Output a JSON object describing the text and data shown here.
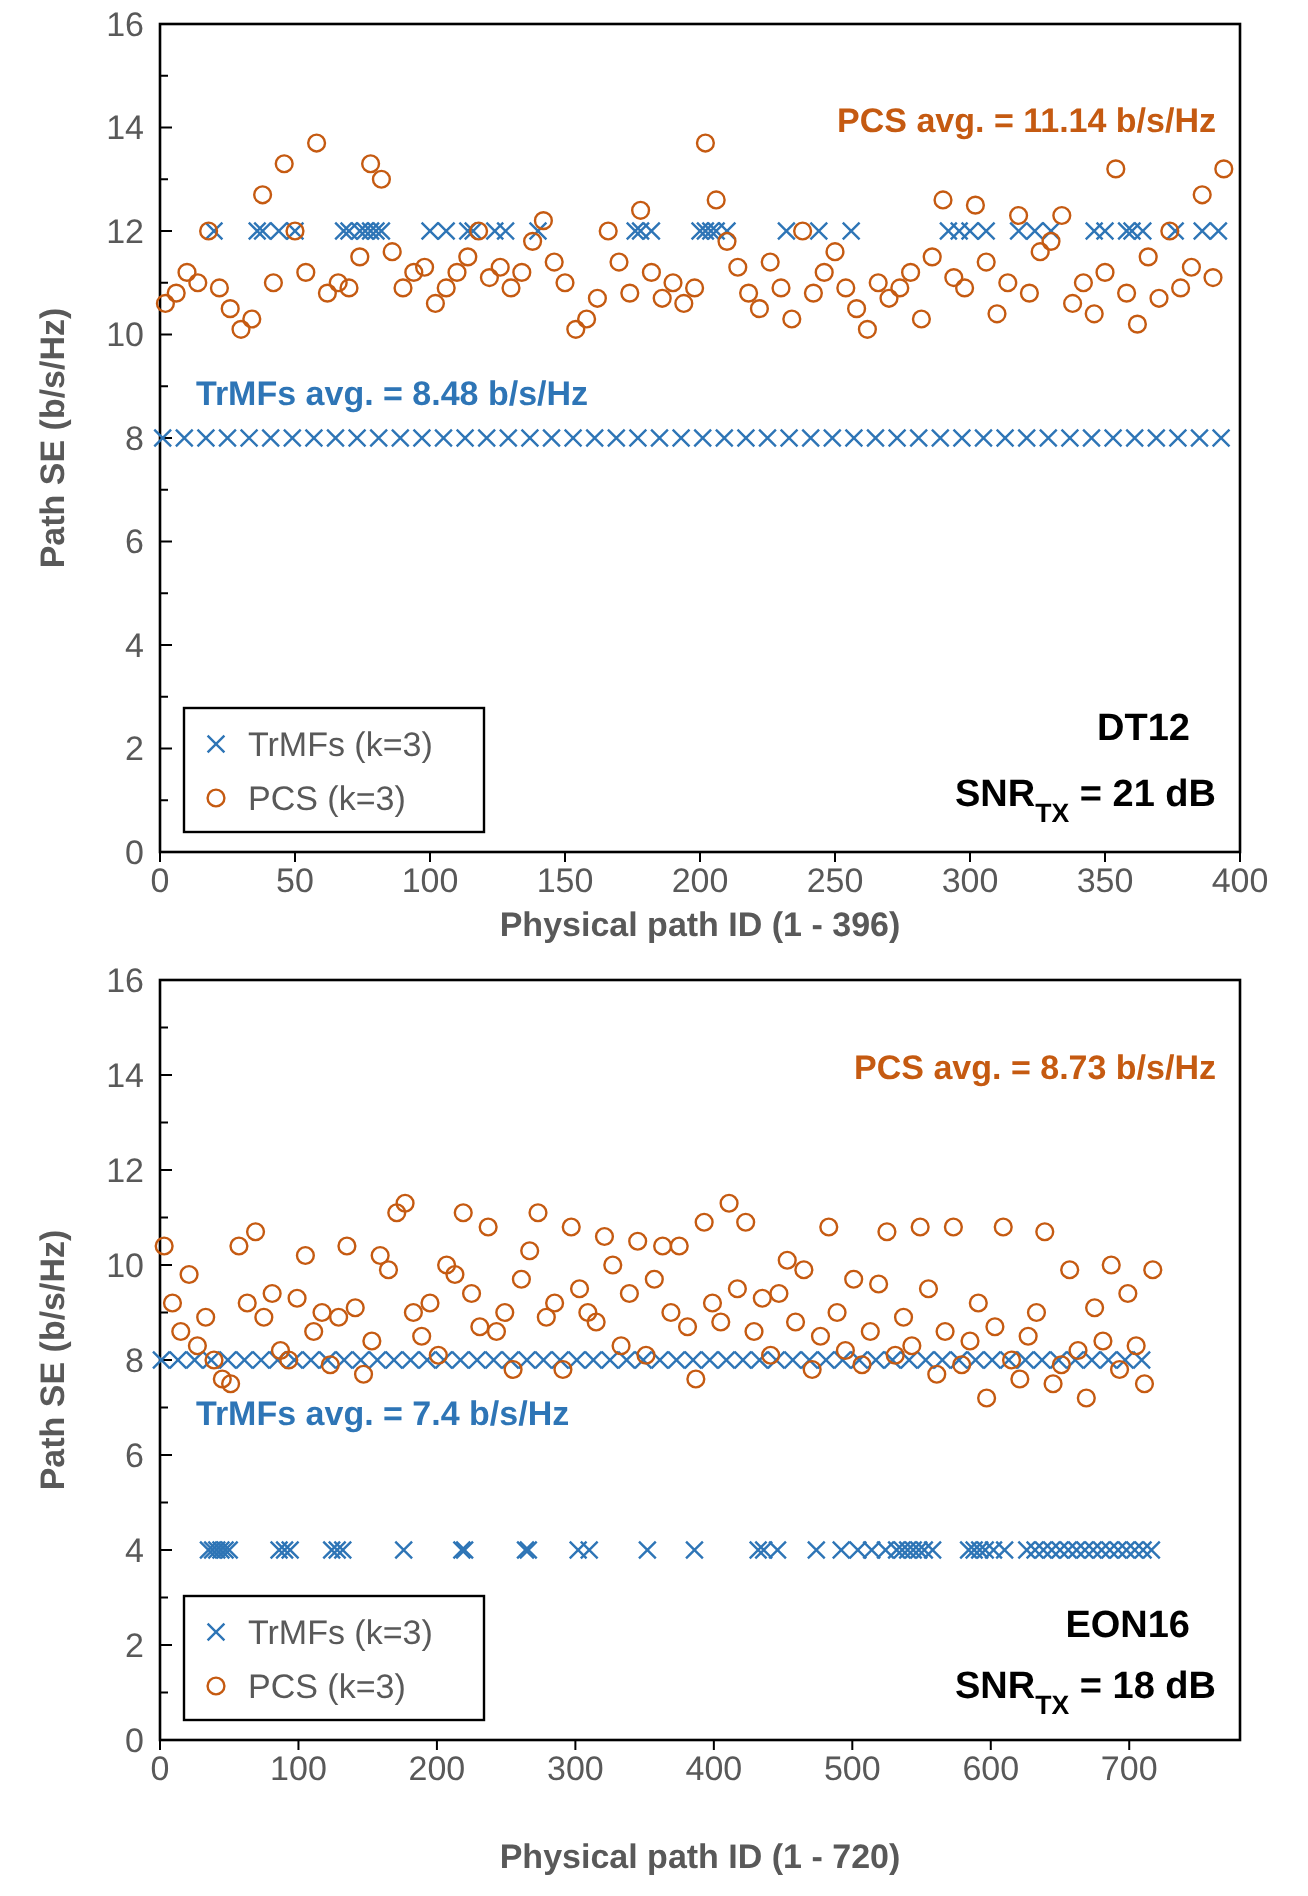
{
  "chart_data": [
    {
      "type": "scatter",
      "xlabel": "Physical path ID (1 - 396)",
      "ylabel": "Path SE (b/s/Hz)",
      "xlim": [
        0,
        400
      ],
      "xticks": [
        0,
        50,
        100,
        150,
        200,
        250,
        300,
        350,
        400
      ],
      "ylim": [
        0,
        16
      ],
      "yticks": [
        0,
        2,
        4,
        6,
        8,
        10,
        12,
        14,
        16
      ],
      "legend": "bottom left",
      "grid": false,
      "annotations": [
        "PCS avg. = 11.14 b/s/Hz",
        "TrMFs avg. = 8.48 b/s/Hz",
        "DT12",
        "SNR$_{TX}$ = 21 dB"
      ],
      "series": [
        {
          "name": "TrMFs (k=3)",
          "color": "#2e75b6",
          "marker": "cross",
          "x": [
            1,
            9,
            17,
            25,
            33,
            41,
            49,
            57,
            65,
            73,
            81,
            89,
            97,
            105,
            113,
            121,
            129,
            137,
            145,
            153,
            161,
            169,
            177,
            185,
            193,
            201,
            209,
            217,
            225,
            233,
            241,
            249,
            257,
            265,
            273,
            281,
            289,
            297,
            305,
            313,
            321,
            329,
            337,
            345,
            353,
            361,
            369,
            377,
            385,
            393,
            20,
            36,
            38,
            44,
            50,
            68,
            70,
            74,
            76,
            78,
            80,
            82,
            100,
            106,
            114,
            116,
            124,
            128,
            140,
            176,
            178,
            182,
            200,
            202,
            204,
            206,
            210,
            232,
            244,
            256,
            292,
            296,
            300,
            306,
            318,
            324,
            330,
            346,
            350,
            358,
            360,
            364,
            376,
            386,
            392
          ],
          "values": [
            8,
            8,
            8,
            8,
            8,
            8,
            8,
            8,
            8,
            8,
            8,
            8,
            8,
            8,
            8,
            8,
            8,
            8,
            8,
            8,
            8,
            8,
            8,
            8,
            8,
            8,
            8,
            8,
            8,
            8,
            8,
            8,
            8,
            8,
            8,
            8,
            8,
            8,
            8,
            8,
            8,
            8,
            8,
            8,
            8,
            8,
            8,
            8,
            8,
            8,
            12,
            12,
            12,
            12,
            12,
            12,
            12,
            12,
            12,
            12,
            12,
            12,
            12,
            12,
            12,
            12,
            12,
            12,
            12,
            12,
            12,
            12,
            12,
            12,
            12,
            12,
            12,
            12,
            12,
            12,
            12,
            12,
            12,
            12,
            12,
            12,
            12,
            12,
            12,
            12,
            12,
            12,
            12,
            12,
            12
          ]
        },
        {
          "name": "PCS (k=3)",
          "color": "#c55a11",
          "marker": "circle",
          "x": [
            2,
            6,
            10,
            14,
            18,
            22,
            26,
            30,
            34,
            38,
            42,
            46,
            50,
            54,
            58,
            62,
            66,
            70,
            74,
            78,
            82,
            86,
            90,
            94,
            98,
            102,
            106,
            110,
            114,
            118,
            122,
            126,
            130,
            134,
            138,
            142,
            146,
            150,
            154,
            158,
            162,
            166,
            170,
            174,
            178,
            182,
            186,
            190,
            194,
            198,
            202,
            206,
            210,
            214,
            218,
            222,
            226,
            230,
            234,
            238,
            242,
            246,
            250,
            254,
            258,
            262,
            266,
            270,
            274,
            278,
            282,
            286,
            290,
            294,
            298,
            302,
            306,
            310,
            314,
            318,
            322,
            326,
            330,
            334,
            338,
            342,
            346,
            350,
            354,
            358,
            362,
            366,
            370,
            374,
            378,
            382,
            386,
            390,
            394
          ],
          "values": [
            10.6,
            10.8,
            11.2,
            11.0,
            12.0,
            10.9,
            10.5,
            10.1,
            10.3,
            12.7,
            11.0,
            13.3,
            12.0,
            11.2,
            13.7,
            10.8,
            11.0,
            10.9,
            11.5,
            13.3,
            13.0,
            11.6,
            10.9,
            11.2,
            11.3,
            10.6,
            10.9,
            11.2,
            11.5,
            12.0,
            11.1,
            11.3,
            10.9,
            11.2,
            11.8,
            12.2,
            11.4,
            11.0,
            10.1,
            10.3,
            10.7,
            12.0,
            11.4,
            10.8,
            12.4,
            11.2,
            10.7,
            11.0,
            10.6,
            10.9,
            13.7,
            12.6,
            11.8,
            11.3,
            10.8,
            10.5,
            11.4,
            10.9,
            10.3,
            12.0,
            10.8,
            11.2,
            11.6,
            10.9,
            10.5,
            10.1,
            11.0,
            10.7,
            10.9,
            11.2,
            10.3,
            11.5,
            12.6,
            11.1,
            10.9,
            12.5,
            11.4,
            10.4,
            11.0,
            12.3,
            10.8,
            11.6,
            11.8,
            12.3,
            10.6,
            11.0,
            10.4,
            11.2,
            13.2,
            10.8,
            10.2,
            11.5,
            10.7,
            12.0,
            10.9,
            11.3,
            12.7,
            11.1,
            13.2
          ]
        }
      ]
    },
    {
      "type": "scatter",
      "xlabel": "Physical path ID (1 - 720)",
      "ylabel": "Path SE (b/s/Hz)",
      "xlim": [
        0,
        780
      ],
      "xticks": [
        0,
        100,
        200,
        300,
        400,
        500,
        600,
        700
      ],
      "ylim": [
        0,
        16
      ],
      "yticks": [
        0,
        2,
        4,
        6,
        8,
        10,
        12,
        14,
        16
      ],
      "legend": "bottom left",
      "grid": false,
      "annotations": [
        "PCS avg. = 8.73 b/s/Hz",
        "TrMFs avg. = 7.4 b/s/Hz",
        "EON16",
        "SNR$_{TX}$ = 18 dB"
      ],
      "series": [
        {
          "name": "TrMFs (k=3)",
          "color": "#2e75b6",
          "marker": "cross",
          "x": [
            1,
            13,
            25,
            37,
            49,
            61,
            73,
            85,
            97,
            109,
            121,
            133,
            145,
            157,
            169,
            181,
            193,
            205,
            217,
            229,
            241,
            253,
            265,
            277,
            289,
            301,
            313,
            325,
            337,
            349,
            361,
            373,
            385,
            397,
            409,
            421,
            433,
            445,
            457,
            469,
            481,
            493,
            505,
            517,
            529,
            541,
            553,
            565,
            577,
            589,
            601,
            613,
            625,
            637,
            649,
            661,
            673,
            685,
            697,
            709,
            35,
            38,
            41,
            44,
            47,
            50,
            86,
            90,
            94,
            124,
            128,
            132,
            176,
            218,
            220,
            264,
            266,
            302,
            310,
            352,
            386,
            432,
            436,
            446,
            474,
            492,
            504,
            514,
            524,
            532,
            536,
            540,
            544,
            548,
            552,
            558,
            584,
            588,
            592,
            596,
            602,
            610,
            626,
            632,
            638,
            644,
            650,
            656,
            662,
            668,
            674,
            680,
            686,
            692,
            698,
            704,
            710,
            716
          ],
          "values": [
            8,
            8,
            8,
            8,
            8,
            8,
            8,
            8,
            8,
            8,
            8,
            8,
            8,
            8,
            8,
            8,
            8,
            8,
            8,
            8,
            8,
            8,
            8,
            8,
            8,
            8,
            8,
            8,
            8,
            8,
            8,
            8,
            8,
            8,
            8,
            8,
            8,
            8,
            8,
            8,
            8,
            8,
            8,
            8,
            8,
            8,
            8,
            8,
            8,
            8,
            8,
            8,
            8,
            8,
            8,
            8,
            8,
            8,
            8,
            8,
            4,
            4,
            4,
            4,
            4,
            4,
            4,
            4,
            4,
            4,
            4,
            4,
            4,
            4,
            4,
            4,
            4,
            4,
            4,
            4,
            4,
            4,
            4,
            4,
            4,
            4,
            4,
            4,
            4,
            4,
            4,
            4,
            4,
            4,
            4,
            4,
            4,
            4,
            4,
            4,
            4,
            4,
            4,
            4,
            4,
            4,
            4,
            4,
            4,
            4,
            4,
            4,
            4,
            4,
            4,
            4,
            4,
            4
          ]
        },
        {
          "name": "PCS (k=3)",
          "color": "#c55a11",
          "marker": "circle",
          "x": [
            3,
            9,
            15,
            21,
            27,
            33,
            39,
            45,
            51,
            57,
            63,
            69,
            75,
            81,
            87,
            93,
            99,
            105,
            111,
            117,
            123,
            129,
            135,
            141,
            147,
            153,
            159,
            165,
            171,
            177,
            183,
            189,
            195,
            201,
            207,
            213,
            219,
            225,
            231,
            237,
            243,
            249,
            255,
            261,
            267,
            273,
            279,
            285,
            291,
            297,
            303,
            309,
            315,
            321,
            327,
            333,
            339,
            345,
            351,
            357,
            363,
            369,
            375,
            381,
            387,
            393,
            399,
            405,
            411,
            417,
            423,
            429,
            435,
            441,
            447,
            453,
            459,
            465,
            471,
            477,
            483,
            489,
            495,
            501,
            507,
            513,
            519,
            525,
            531,
            537,
            543,
            549,
            555,
            561,
            567,
            573,
            579,
            585,
            591,
            597,
            603,
            609,
            615,
            621,
            627,
            633,
            639,
            645,
            651,
            657,
            663,
            669,
            675,
            681,
            687,
            693,
            699,
            705,
            711,
            717
          ],
          "values": [
            10.4,
            9.2,
            8.6,
            9.8,
            8.3,
            8.9,
            8.0,
            7.6,
            7.5,
            10.4,
            9.2,
            10.7,
            8.9,
            9.4,
            8.2,
            8.0,
            9.3,
            10.2,
            8.6,
            9.0,
            7.9,
            8.9,
            10.4,
            9.1,
            7.7,
            8.4,
            10.2,
            9.9,
            11.1,
            11.3,
            9.0,
            8.5,
            9.2,
            8.1,
            10.0,
            9.8,
            11.1,
            9.4,
            8.7,
            10.8,
            8.6,
            9.0,
            7.8,
            9.7,
            10.3,
            11.1,
            8.9,
            9.2,
            7.8,
            10.8,
            9.5,
            9.0,
            8.8,
            10.6,
            10.0,
            8.3,
            9.4,
            10.5,
            8.1,
            9.7,
            10.4,
            9.0,
            10.4,
            8.7,
            7.6,
            10.9,
            9.2,
            8.8,
            11.3,
            9.5,
            10.9,
            8.6,
            9.3,
            8.1,
            9.4,
            10.1,
            8.8,
            9.9,
            7.8,
            8.5,
            10.8,
            9.0,
            8.2,
            9.7,
            7.9,
            8.6,
            9.6,
            10.7,
            8.1,
            8.9,
            8.3,
            10.8,
            9.5,
            7.7,
            8.6,
            10.8,
            7.9,
            8.4,
            9.2,
            7.2,
            8.7,
            10.8,
            8.0,
            7.6,
            8.5,
            9.0,
            10.7,
            7.5,
            7.9,
            9.9,
            8.2,
            7.2,
            9.1,
            8.4,
            10.0,
            7.8,
            9.4,
            8.3,
            7.5,
            9.9
          ]
        }
      ]
    }
  ]
}
